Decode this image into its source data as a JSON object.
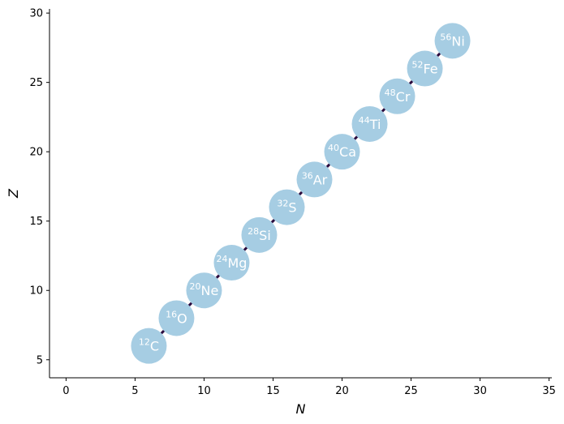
{
  "chart_data": {
    "type": "scatter",
    "title": "",
    "xlabel": "N",
    "ylabel": "Z",
    "xlim": [
      -1.2,
      35.2
    ],
    "ylim": [
      3.7,
      30.3
    ],
    "xticks": [
      0,
      5,
      10,
      15,
      20,
      25,
      30,
      35
    ],
    "yticks": [
      5,
      10,
      15,
      20,
      25,
      30
    ],
    "grid": false,
    "marker_color": "#a6cde3",
    "link_color": "#2b0a3d",
    "label_color": "#ffffff",
    "points": [
      {
        "N": 6,
        "Z": 6,
        "A": "12",
        "symbol": "C"
      },
      {
        "N": 8,
        "Z": 8,
        "A": "16",
        "symbol": "O"
      },
      {
        "N": 10,
        "Z": 10,
        "A": "20",
        "symbol": "Ne"
      },
      {
        "N": 12,
        "Z": 12,
        "A": "24",
        "symbol": "Mg"
      },
      {
        "N": 14,
        "Z": 14,
        "A": "28",
        "symbol": "Si"
      },
      {
        "N": 16,
        "Z": 16,
        "A": "32",
        "symbol": "S"
      },
      {
        "N": 18,
        "Z": 18,
        "A": "36",
        "symbol": "Ar"
      },
      {
        "N": 20,
        "Z": 20,
        "A": "40",
        "symbol": "Ca"
      },
      {
        "N": 22,
        "Z": 22,
        "A": "44",
        "symbol": "Ti"
      },
      {
        "N": 24,
        "Z": 24,
        "A": "48",
        "symbol": "Cr"
      },
      {
        "N": 26,
        "Z": 26,
        "A": "52",
        "symbol": "Fe"
      },
      {
        "N": 28,
        "Z": 28,
        "A": "56",
        "symbol": "Ni"
      }
    ]
  }
}
